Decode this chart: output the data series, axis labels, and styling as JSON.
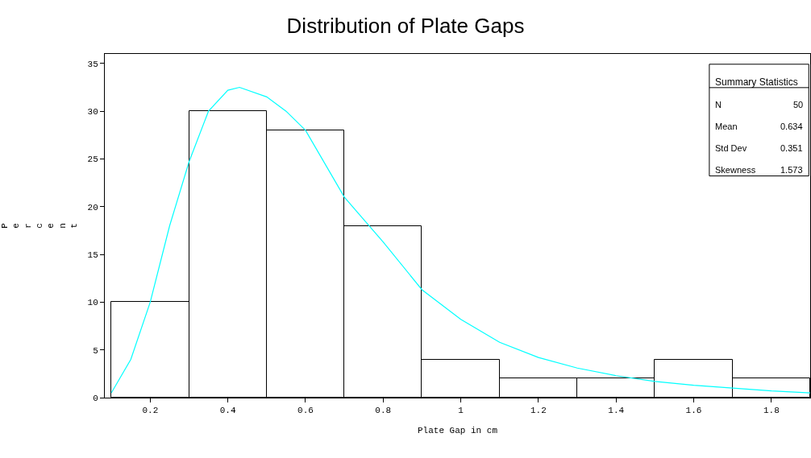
{
  "chart_data": {
    "type": "histogram",
    "title": "Distribution of Plate Gaps",
    "xlabel": "Plate Gap in cm",
    "ylabel": "Percent",
    "bins": [
      0.1,
      0.3,
      0.5,
      0.7,
      0.9,
      1.1,
      1.3,
      1.5,
      1.7,
      1.9
    ],
    "values": [
      10,
      30,
      28,
      18,
      4,
      2,
      2,
      4,
      2
    ],
    "xlim": [
      0.083,
      1.9
    ],
    "ylim": [
      0,
      36
    ],
    "xticks": [
      0.2,
      0.4,
      0.6,
      0.8,
      1,
      1.2,
      1.4,
      1.6,
      1.8
    ],
    "yticks": [
      0,
      5,
      10,
      15,
      20,
      25,
      30,
      35
    ],
    "series": [
      {
        "type": "line",
        "color": "#00ffff",
        "x": [
          0.1,
          0.15,
          0.2,
          0.25,
          0.3,
          0.35,
          0.4,
          0.43,
          0.5,
          0.55,
          0.6,
          0.7,
          0.8,
          0.9,
          1.0,
          1.1,
          1.2,
          1.3,
          1.4,
          1.5,
          1.6,
          1.7,
          1.8,
          1.9
        ],
        "values": [
          0.5,
          4,
          10,
          18,
          24.7,
          30,
          32.2,
          32.5,
          31.5,
          30,
          28,
          21,
          16.3,
          11.3,
          8.2,
          5.8,
          4.2,
          3.1,
          2.3,
          1.7,
          1.3,
          1,
          0.7,
          0.5
        ]
      }
    ],
    "annotations": [
      "Summary Statistics",
      "N",
      "50",
      "Mean",
      "0.634",
      "Std Dev",
      "0.351",
      "Skewness",
      "1.573"
    ],
    "marker": "none",
    "line_style": "solid"
  }
}
